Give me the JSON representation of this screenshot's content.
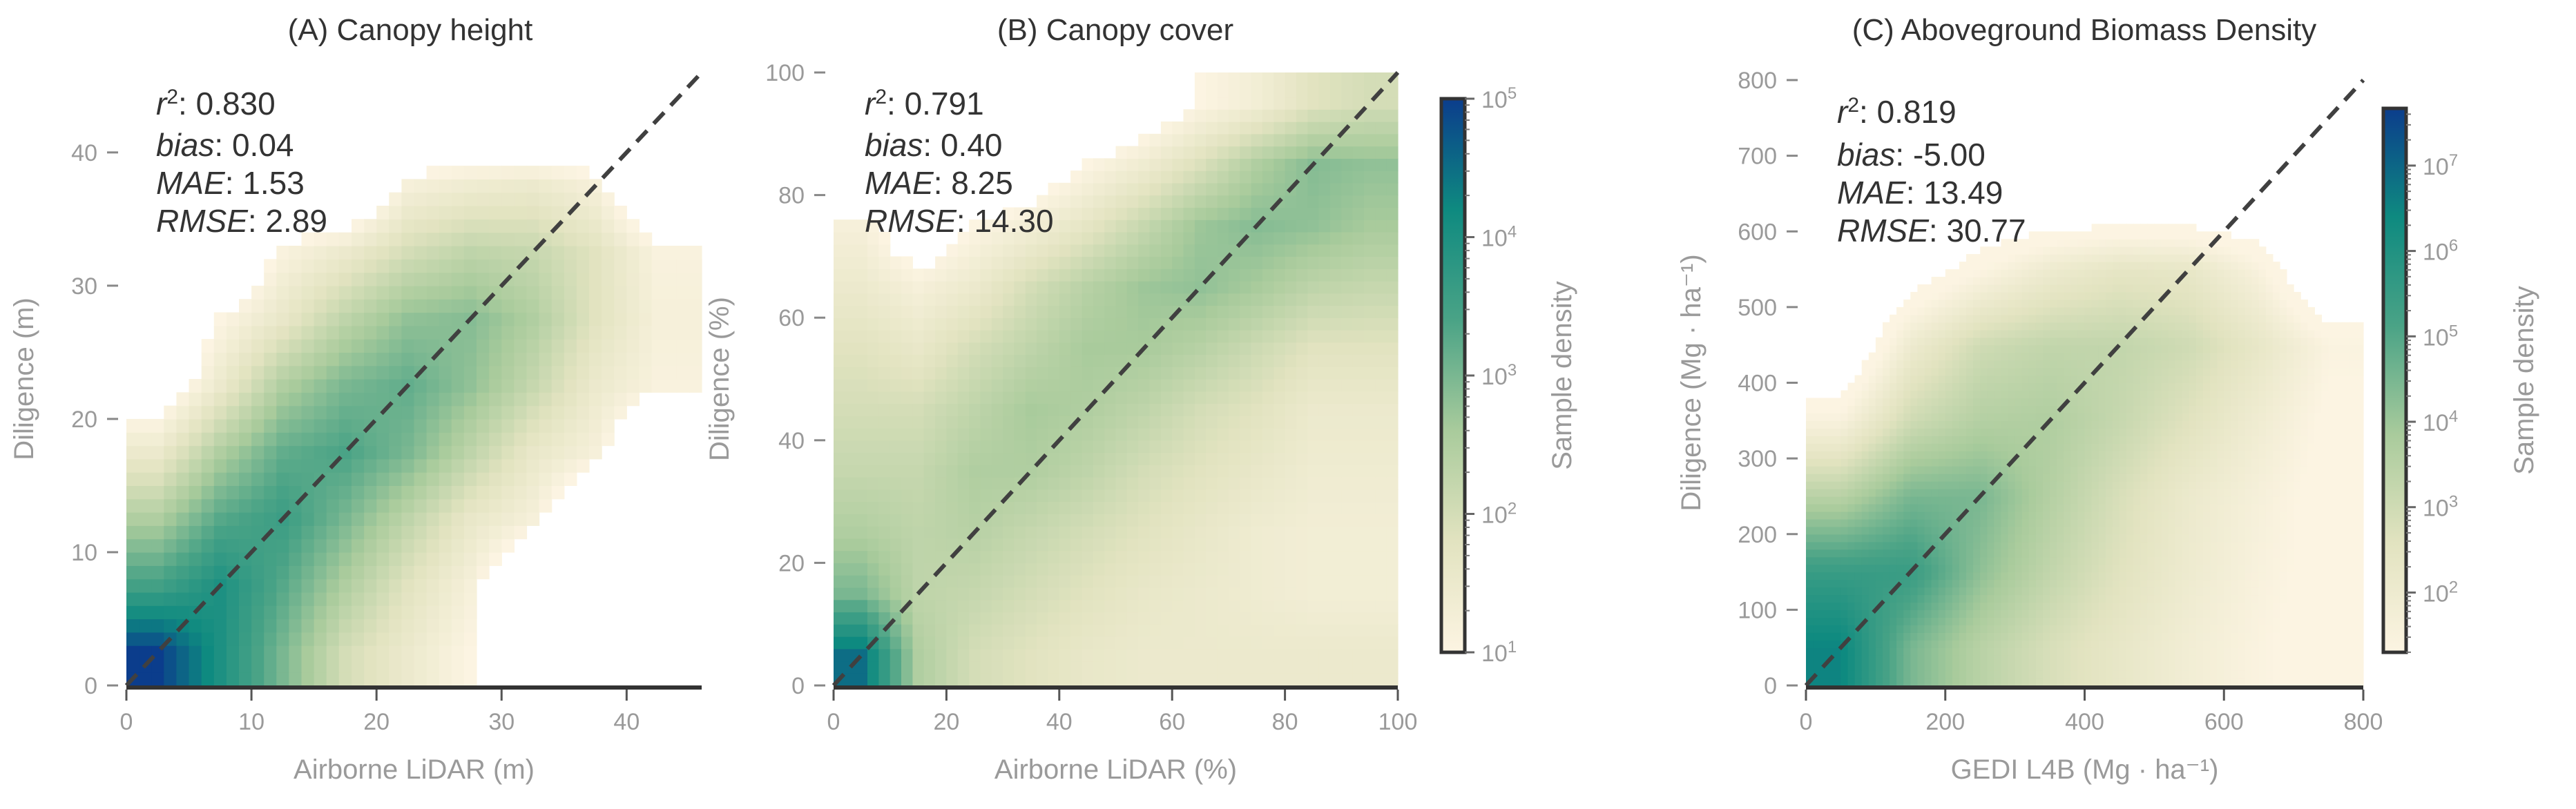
{
  "chart_data": [
    {
      "type": "heatmap",
      "title": "(A) Canopy height",
      "xlabel": "Airborne LiDAR (m)",
      "ylabel": "Diligence (m)",
      "xlim": [
        0,
        46
      ],
      "ylim": [
        0,
        46
      ],
      "xticks": [
        0,
        10,
        20,
        30,
        40
      ],
      "yticks": [
        0,
        10,
        20,
        30,
        40
      ],
      "one_to_one_line": true,
      "stats": [
        {
          "label": "r",
          "sup": "2",
          "value": "0.830"
        },
        {
          "label": "bias",
          "sup": "",
          "value": "0.04"
        },
        {
          "label": "MAE",
          "sup": "",
          "value": "1.53"
        },
        {
          "label": "RMSE",
          "sup": "",
          "value": "2.89"
        }
      ],
      "density_log10": {
        "x_centers": [
          2.5,
          7.5,
          12.5,
          17.5,
          22.5,
          27.5,
          32.5,
          37.5,
          42.5
        ],
        "y_centers": [
          2.5,
          7.5,
          12.5,
          17.5,
          22.5,
          27.5,
          32.5,
          37.5,
          42.5
        ],
        "values": [
          [
            5,
            4,
            3,
            2,
            1.5,
            1,
            0,
            0,
            0
          ],
          [
            3.5,
            4,
            3.3,
            2.5,
            1.8,
            1.2,
            0,
            0,
            0
          ],
          [
            2.5,
            3.3,
            3.6,
            3,
            2.3,
            1.6,
            1.2,
            0,
            0
          ],
          [
            1.5,
            2.5,
            3.2,
            3.4,
            3,
            2.3,
            1.6,
            1.2,
            0
          ],
          [
            0.5,
            1.5,
            2.5,
            3,
            3.2,
            2.8,
            2.2,
            1.5,
            1.1
          ],
          [
            0,
            1,
            1.6,
            2.3,
            2.8,
            2.9,
            2.5,
            1.8,
            1.2
          ],
          [
            0,
            0,
            1.1,
            1.5,
            2,
            2.3,
            2.2,
            1.8,
            1.1
          ],
          [
            0,
            0,
            0,
            0,
            1.2,
            1.4,
            1.5,
            1.2,
            0
          ],
          [
            0,
            0,
            0,
            0,
            0,
            0,
            0,
            0,
            0
          ]
        ]
      },
      "color_range_log10": [
        1,
        5
      ]
    },
    {
      "type": "heatmap",
      "title": "(B) Canopy cover",
      "xlabel": "Airborne LiDAR (%)",
      "ylabel": "Diligence (%)",
      "xlim": [
        0,
        100
      ],
      "ylim": [
        0,
        100
      ],
      "xticks": [
        0,
        20,
        40,
        60,
        80,
        100
      ],
      "yticks": [
        0,
        20,
        40,
        60,
        80,
        100
      ],
      "one_to_one_line": true,
      "stats": [
        {
          "label": "r",
          "sup": "2",
          "value": "0.791"
        },
        {
          "label": "bias",
          "sup": "",
          "value": "0.40"
        },
        {
          "label": "MAE",
          "sup": "",
          "value": "8.25"
        },
        {
          "label": "RMSE",
          "sup": "",
          "value": "14.30"
        }
      ],
      "density_log10": {
        "x_centers": [
          5,
          15,
          25,
          35,
          45,
          55,
          65,
          75,
          85,
          95
        ],
        "y_centers": [
          5,
          15,
          25,
          35,
          45,
          55,
          65,
          75,
          85,
          95
        ],
        "values": [
          [
            4.5,
            2.5,
            2,
            1.8,
            1.6,
            1.5,
            1.5,
            1.5,
            1.5,
            1.5
          ],
          [
            3,
            2.3,
            2.2,
            2,
            1.8,
            1.6,
            1.5,
            1.4,
            1.3,
            1.3
          ],
          [
            2.5,
            2.3,
            2.4,
            2.2,
            2,
            1.8,
            1.6,
            1.4,
            1.3,
            1.3
          ],
          [
            2.2,
            2.2,
            2.5,
            2.5,
            2.3,
            2,
            1.8,
            1.6,
            1.4,
            1.4
          ],
          [
            2,
            2,
            2.3,
            2.6,
            2.5,
            2.3,
            2,
            1.8,
            1.5,
            1.5
          ],
          [
            1.8,
            1.6,
            2,
            2.3,
            2.6,
            2.6,
            2.4,
            2.1,
            1.8,
            1.8
          ],
          [
            1.5,
            1.2,
            1.5,
            2,
            2.4,
            2.7,
            2.8,
            2.6,
            2.3,
            2.2
          ],
          [
            1.2,
            0.5,
            1,
            1.3,
            1.7,
            2.2,
            2.7,
            2.9,
            2.8,
            2.6
          ],
          [
            0,
            0,
            0,
            0.5,
            1,
            1.4,
            1.9,
            2.5,
            2.9,
            2.8
          ],
          [
            0,
            0,
            0,
            0,
            0,
            0.5,
            1,
            1.3,
            1.8,
            2
          ]
        ]
      },
      "colorbar": {
        "label": "Sample density",
        "range_log10": [
          1,
          5
        ],
        "tick_exponents": [
          1,
          2,
          3,
          4,
          5
        ],
        "scale": "log"
      }
    },
    {
      "type": "heatmap",
      "title": "(C) Aboveground Biomass Density",
      "xlabel": "GEDI L4B (Mg · ha⁻¹)",
      "ylabel": "Diligence (Mg · ha⁻¹)",
      "xlim": [
        0,
        800
      ],
      "ylim": [
        0,
        800
      ],
      "xticks": [
        0,
        200,
        400,
        600,
        800
      ],
      "yticks": [
        0,
        100,
        200,
        300,
        400,
        500,
        600,
        700,
        800
      ],
      "one_to_one_line": true,
      "stats": [
        {
          "label": "r",
          "sup": "2",
          "value": "0.819"
        },
        {
          "label": "bias",
          "sup": "",
          "value": "-5.00"
        },
        {
          "label": "MAE",
          "sup": "",
          "value": "13.49"
        },
        {
          "label": "RMSE",
          "sup": "",
          "value": "30.77"
        }
      ],
      "density_log10": {
        "x_centers": [
          50,
          150,
          250,
          350,
          450,
          550,
          650,
          750
        ],
        "y_centers": [
          50,
          150,
          250,
          350,
          450,
          550,
          650,
          750
        ],
        "values": [
          [
            6.5,
            4.5,
            3.5,
            2.8,
            2.3,
            1.8,
            1.4,
            1
          ],
          [
            5.5,
            5.5,
            4.2,
            3.3,
            2.6,
            2,
            1.5,
            1.1
          ],
          [
            3.5,
            4.5,
            4.5,
            3.6,
            2.8,
            2.1,
            1.6,
            1.1
          ],
          [
            1.5,
            3,
            3.6,
            3.7,
            3.2,
            2.6,
            1.9,
            1.2
          ],
          [
            0,
            2,
            3,
            3.3,
            3.3,
            3,
            2.3,
            1.4
          ],
          [
            0,
            0.5,
            1.3,
            2,
            2.4,
            2.3,
            1.5,
            0
          ],
          [
            0,
            0,
            0,
            0,
            0,
            0,
            0,
            0
          ],
          [
            0,
            0,
            0,
            0,
            0,
            0,
            0,
            0
          ]
        ]
      },
      "colorbar": {
        "label": "Sample density",
        "range_log10": [
          1.3,
          7.67
        ],
        "tick_exponents": [
          2,
          3,
          4,
          5,
          6,
          7
        ],
        "scale": "log"
      }
    }
  ],
  "colors": {
    "colormap": [
      "#fcf4e2",
      "#e2e3c0",
      "#a9cb9c",
      "#4aa386",
      "#0e8a80",
      "#0b3d8c"
    ],
    "one_to_one_line": "#404040",
    "axis": "#333333",
    "tick_text": "#9a9a9a"
  }
}
